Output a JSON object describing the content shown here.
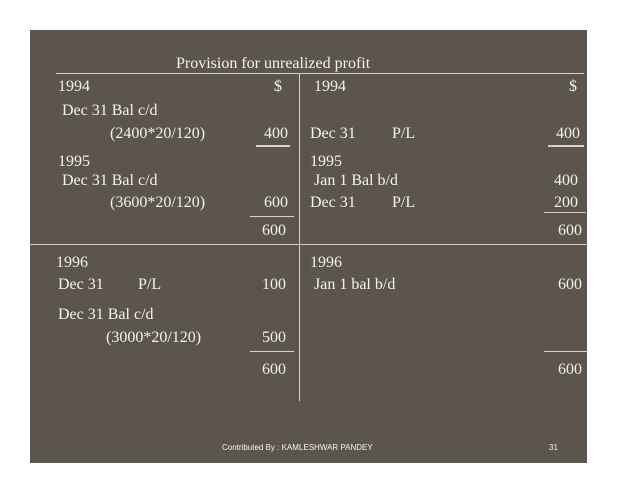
{
  "title": "Provision for unrealized profit",
  "left": {
    "year_1994": "1994",
    "currency": "$",
    "e1_label": "Dec 31 Bal c/d",
    "e1_calc": "(2400*20/120)",
    "e1_amount": "400",
    "year_1995": "1995",
    "e2_label": "Dec 31 Bal c/d",
    "e2_calc": "(3600*20/120)",
    "e2_amount": "600",
    "total_1995": "600",
    "year_1996": "1996",
    "e3_date": "Dec 31",
    "e3_label": "P/L",
    "e3_amount": "100",
    "e4_label": "Dec 31 Bal c/d",
    "e4_calc": "(3000*20/120)",
    "e4_amount": "500",
    "total_1996": "600"
  },
  "right": {
    "year_1994": "1994",
    "currency": "$",
    "e1_date": "Dec 31",
    "e1_label": "P/L",
    "e1_amount": "400",
    "year_1995": "1995",
    "e2_label": "Jan 1  Bal b/d",
    "e2_amount": "400",
    "e3_date": "Dec 31",
    "e3_label": "P/L",
    "e3_amount": "200",
    "total_1995": "600",
    "year_1996": "1996",
    "e4_label": "Jan 1   bal b/d",
    "e4_amount": "600",
    "total_1996": "600"
  },
  "footer": {
    "credit": "Contributed By : KAMLESHWAR PANDEY",
    "page": "31"
  }
}
